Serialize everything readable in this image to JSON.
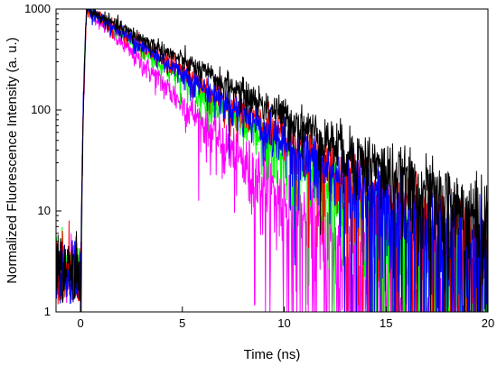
{
  "chart_data": {
    "type": "line",
    "title": "",
    "xlabel": "Time (ns)",
    "ylabel": "Normalized Fluorescence Intensity (a. u.)",
    "xlim": [
      -1.2,
      20
    ],
    "ylim": [
      1,
      1000
    ],
    "y_scale": "log",
    "grid": false,
    "legend": "none",
    "x_ticks": [
      0,
      5,
      10,
      15,
      20
    ],
    "x_tick_labels": [
      "0",
      "5",
      "10",
      "15",
      "20"
    ],
    "y_ticks": [
      1,
      10,
      100,
      1000
    ],
    "y_tick_labels": [
      "1",
      "10",
      "100",
      "1000"
    ],
    "series": [
      {
        "color": "#000000",
        "lifetime_ns": 4.0,
        "x": [
          0.3,
          5,
          10,
          15,
          20
        ],
        "y": [
          1000,
          310,
          89,
          29,
          12
        ]
      },
      {
        "color": "#ff0000",
        "lifetime_ns": 3.3,
        "x": [
          0.3,
          5,
          10,
          15,
          20
        ],
        "y": [
          1000,
          240,
          48,
          11,
          3.2
        ]
      },
      {
        "color": "#0000ff",
        "lifetime_ns": 3.2,
        "x": [
          0.3,
          5,
          10,
          15,
          20
        ],
        "y": [
          1000,
          230,
          46,
          10,
          2.8
        ]
      },
      {
        "color": "#00ff00",
        "lifetime_ns": 2.9,
        "x": [
          0.3,
          5,
          10,
          15,
          20
        ],
        "y": [
          1000,
          180,
          30,
          6,
          1.2
        ]
      },
      {
        "color": "#ff00ff",
        "lifetime_ns": 2.2,
        "x": [
          0.3,
          5,
          10,
          15,
          16
        ],
        "y": [
          1000,
          120,
          13,
          1.5,
          1
        ]
      }
    ]
  }
}
